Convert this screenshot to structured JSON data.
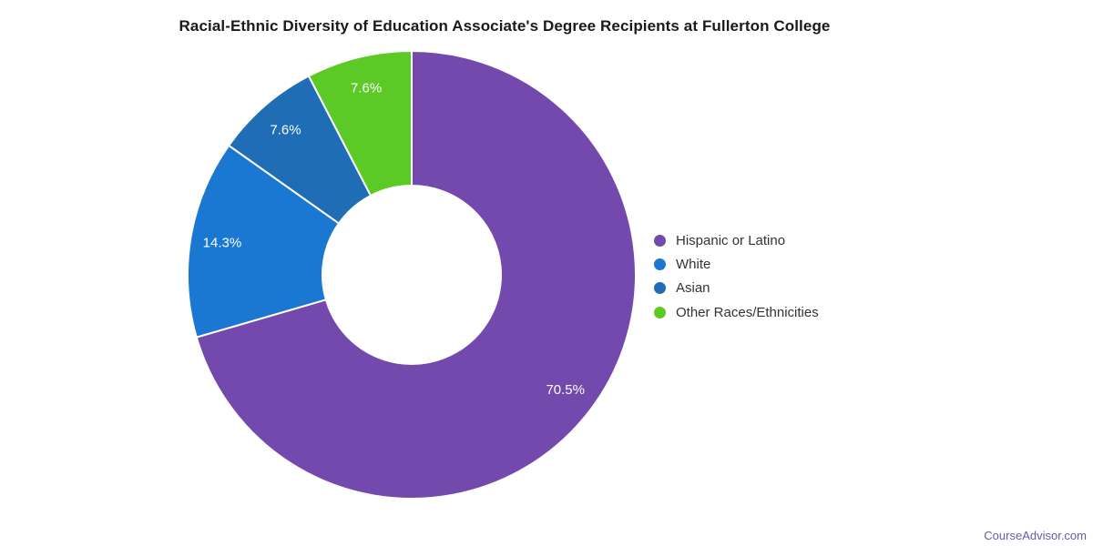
{
  "watermark": {
    "text": "CourseAdvisor.com",
    "color": "#6A5AA8"
  },
  "chart_data": {
    "type": "pie",
    "subtype": "donut",
    "title": "Racial-Ethnic Diversity of Education Associate's Degree Recipients at Fullerton College",
    "categories": [
      "Hispanic or Latino",
      "White",
      "Asian",
      "Other Races/Ethnicities"
    ],
    "values": [
      70.5,
      14.3,
      7.6,
      7.6
    ],
    "data_labels": [
      "70.5%",
      "14.3%",
      "7.6%",
      "7.6%"
    ],
    "colors": [
      "#7449AE",
      "#1B78D2",
      "#1E6DB5",
      "#5BC926"
    ],
    "start_angle_deg": 0,
    "direction": "clockwise",
    "legend_position": "right",
    "label_color": "#ffffff",
    "slice_border_color": "#ffffff",
    "grid": false
  }
}
